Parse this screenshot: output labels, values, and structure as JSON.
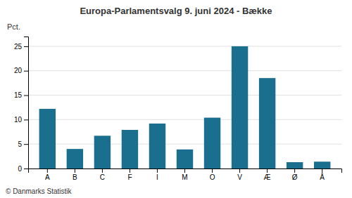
{
  "chart_data": {
    "type": "bar",
    "title": "Europa-Parlamentsvalg 9. juni 2024 - Bække",
    "ylabel": "Pct.",
    "footer": "© Danmarks Statistik",
    "categories": [
      "A",
      "B",
      "C",
      "F",
      "I",
      "M",
      "O",
      "V",
      "Æ",
      "Ø",
      "Å"
    ],
    "values": [
      12.2,
      4.0,
      6.7,
      7.9,
      9.2,
      3.9,
      10.4,
      25.0,
      18.5,
      1.3,
      1.4
    ],
    "color": "#1a6e8e",
    "ylim": [
      0,
      27
    ],
    "yticks": [
      0,
      5,
      10,
      15,
      20,
      25
    ],
    "grid": true
  }
}
